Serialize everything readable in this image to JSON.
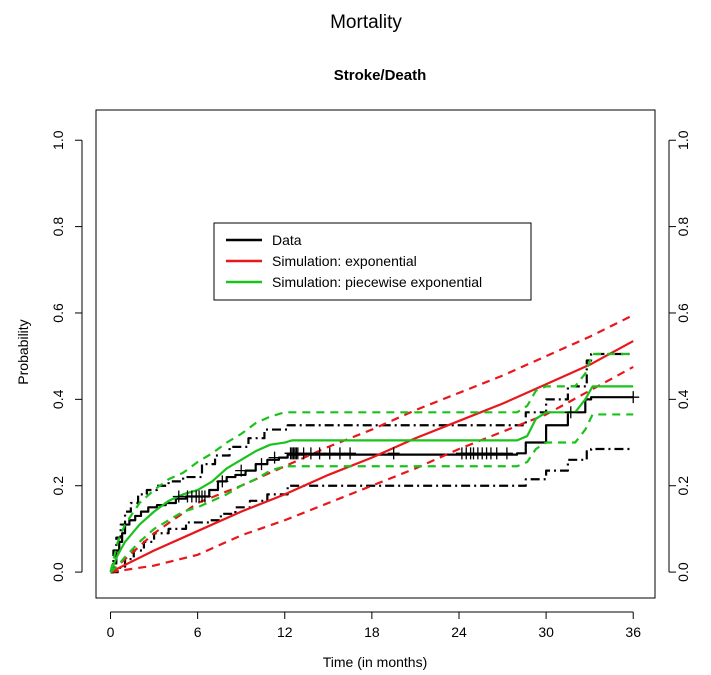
{
  "chart_data": {
    "type": "line",
    "title": "Mortality",
    "subtitle": "Stroke/Death",
    "xlabel": "Time (in months)",
    "ylabel": "Probability",
    "xlim": [
      -1,
      37.5
    ],
    "ylim": [
      -0.06,
      1.07
    ],
    "xticks": [
      0,
      6,
      12,
      18,
      24,
      30,
      36
    ],
    "yticks": [
      0.0,
      0.2,
      0.4,
      0.6,
      0.8,
      1.0
    ],
    "ytick_labels": [
      "0.0",
      "0.2",
      "0.4",
      "0.6",
      "0.8",
      "1.0"
    ],
    "grid": false,
    "legend_position": "upper-center",
    "legend": [
      {
        "label": "Data",
        "color": "#000000"
      },
      {
        "label": "Simulation: exponential",
        "color": "#e8171b"
      },
      {
        "label": "Simulation: piecewise exponential",
        "color": "#19c31b"
      }
    ],
    "series": [
      {
        "name": "Data",
        "color": "#000000",
        "style": "step",
        "x": [
          0,
          0.2,
          0.4,
          0.6,
          0.8,
          1.0,
          1.3,
          1.7,
          2.1,
          2.6,
          3.2,
          3.8,
          4.5,
          5.2,
          6.8,
          7.4,
          8.0,
          8.6,
          9.3,
          10.0,
          10.8,
          11.6,
          12.2,
          28.0,
          28.6,
          30.0,
          31.5,
          32.7,
          33.1,
          36.0
        ],
        "y": [
          0.0,
          0.02,
          0.05,
          0.07,
          0.09,
          0.11,
          0.12,
          0.13,
          0.14,
          0.15,
          0.155,
          0.16,
          0.17,
          0.175,
          0.19,
          0.21,
          0.22,
          0.225,
          0.235,
          0.25,
          0.26,
          0.265,
          0.272,
          0.275,
          0.3,
          0.34,
          0.37,
          0.4,
          0.405,
          0.405
        ]
      },
      {
        "name": "Data CI upper",
        "color": "#000000",
        "style": "step-dashdot",
        "x": [
          0,
          0.2,
          0.4,
          0.7,
          1.0,
          1.4,
          1.9,
          2.5,
          3.2,
          4.0,
          5.0,
          6.3,
          7.2,
          8.2,
          9.5,
          10.6,
          12.2,
          28.0,
          28.6,
          30.0,
          31.5,
          32.8,
          33.1,
          36.0
        ],
        "y": [
          0.0,
          0.05,
          0.08,
          0.11,
          0.14,
          0.16,
          0.18,
          0.19,
          0.2,
          0.21,
          0.22,
          0.25,
          0.27,
          0.29,
          0.31,
          0.33,
          0.34,
          0.34,
          0.37,
          0.4,
          0.43,
          0.49,
          0.505,
          0.505
        ]
      },
      {
        "name": "Data CI lower",
        "color": "#000000",
        "style": "step-dashdot",
        "x": [
          0,
          0.5,
          1.0,
          1.6,
          2.3,
          3.0,
          4.0,
          5.2,
          6.8,
          7.6,
          8.6,
          9.6,
          10.8,
          12.2,
          28.0,
          28.6,
          30.0,
          31.5,
          32.8,
          33.1,
          36.0
        ],
        "y": [
          0.0,
          0.01,
          0.03,
          0.05,
          0.07,
          0.09,
          0.1,
          0.115,
          0.12,
          0.135,
          0.15,
          0.165,
          0.18,
          0.2,
          0.2,
          0.215,
          0.235,
          0.26,
          0.28,
          0.285,
          0.285
        ]
      },
      {
        "name": "Simulation: exponential",
        "color": "#e8171b",
        "style": "solid",
        "x": [
          0,
          3,
          6,
          9,
          12,
          15,
          18,
          21,
          24,
          27,
          30,
          33,
          36
        ],
        "y": [
          0.0,
          0.05,
          0.095,
          0.14,
          0.18,
          0.225,
          0.265,
          0.31,
          0.35,
          0.39,
          0.435,
          0.48,
          0.535
        ]
      },
      {
        "name": "Simulation: exponential upper",
        "color": "#e8171b",
        "style": "dashed",
        "x": [
          0,
          3,
          6,
          9,
          12,
          15,
          18,
          21,
          24,
          27,
          30,
          33,
          36
        ],
        "y": [
          0.0,
          0.09,
          0.16,
          0.2,
          0.245,
          0.29,
          0.33,
          0.375,
          0.415,
          0.455,
          0.5,
          0.545,
          0.595
        ]
      },
      {
        "name": "Simulation: exponential lower",
        "color": "#e8171b",
        "style": "dashed",
        "x": [
          0,
          3,
          6,
          9,
          12,
          15,
          18,
          21,
          24,
          27,
          30,
          33,
          36
        ],
        "y": [
          0.0,
          0.015,
          0.04,
          0.085,
          0.12,
          0.16,
          0.2,
          0.24,
          0.285,
          0.325,
          0.365,
          0.42,
          0.475
        ]
      },
      {
        "name": "Simulation: piecewise exponential",
        "color": "#19c31b",
        "style": "solid",
        "x": [
          0,
          0.5,
          1,
          2,
          3,
          4,
          5,
          6,
          7,
          8,
          9,
          10,
          11,
          12,
          12.5,
          28,
          28.7,
          29.3,
          30,
          32,
          32.7,
          33.2,
          36
        ],
        "y": [
          0.0,
          0.04,
          0.07,
          0.11,
          0.14,
          0.165,
          0.18,
          0.19,
          0.21,
          0.24,
          0.26,
          0.28,
          0.295,
          0.3,
          0.305,
          0.305,
          0.315,
          0.355,
          0.37,
          0.37,
          0.4,
          0.43,
          0.43
        ]
      },
      {
        "name": "Simulation: piecewise exponential upper",
        "color": "#19c31b",
        "style": "dashed",
        "x": [
          0,
          0.5,
          1,
          2,
          3,
          4,
          5,
          6,
          7,
          8,
          9,
          10,
          11,
          12,
          28,
          28.7,
          29.3,
          30,
          32,
          32.7,
          33.2,
          36
        ],
        "y": [
          0.0,
          0.07,
          0.11,
          0.16,
          0.19,
          0.215,
          0.23,
          0.255,
          0.275,
          0.3,
          0.32,
          0.345,
          0.36,
          0.37,
          0.37,
          0.385,
          0.42,
          0.43,
          0.43,
          0.46,
          0.505,
          0.505
        ]
      },
      {
        "name": "Simulation: piecewise exponential lower",
        "color": "#19c31b",
        "style": "dashed",
        "x": [
          0,
          0.5,
          1,
          2,
          3,
          4,
          5,
          6,
          7,
          8,
          9,
          10,
          11,
          12,
          28,
          28.7,
          29.3,
          30,
          32,
          32.7,
          33.2,
          36
        ],
        "y": [
          0.0,
          0.015,
          0.035,
          0.07,
          0.1,
          0.12,
          0.14,
          0.15,
          0.165,
          0.18,
          0.2,
          0.215,
          0.235,
          0.245,
          0.245,
          0.255,
          0.285,
          0.3,
          0.3,
          0.33,
          0.365,
          0.365
        ]
      }
    ],
    "censor_marks": {
      "color": "#000000",
      "x": [
        4.7,
        5.3,
        5.6,
        5.9,
        6.1,
        6.3,
        6.5,
        7.7,
        9.0,
        10.4,
        11.3,
        12.4,
        12.5,
        12.6,
        12.7,
        12.8,
        12.9,
        13.3,
        13.8,
        14.4,
        15.1,
        15.8,
        16.5,
        19.5,
        24.2,
        24.5,
        24.8,
        25.0,
        25.3,
        25.6,
        25.9,
        26.2,
        26.6,
        27.3,
        31.7,
        36.0
      ],
      "y": [
        0.175,
        0.175,
        0.175,
        0.175,
        0.175,
        0.175,
        0.175,
        0.21,
        0.235,
        0.25,
        0.265,
        0.275,
        0.275,
        0.275,
        0.275,
        0.275,
        0.275,
        0.275,
        0.275,
        0.275,
        0.275,
        0.275,
        0.275,
        0.275,
        0.275,
        0.275,
        0.275,
        0.275,
        0.275,
        0.275,
        0.275,
        0.275,
        0.275,
        0.275,
        0.37,
        0.405
      ]
    }
  }
}
